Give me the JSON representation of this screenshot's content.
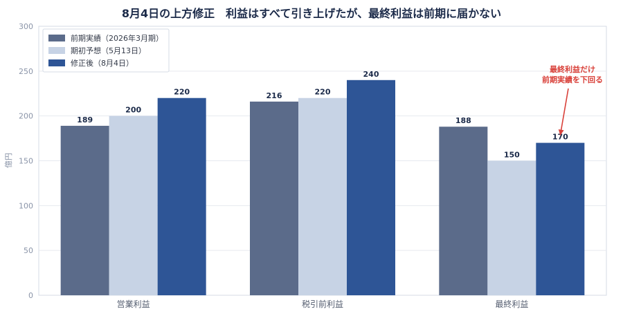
{
  "chart_data": {
    "type": "bar",
    "title": "8月4日の上方修正　利益はすべて引き上げたが、最終利益は前期に届かない",
    "ylabel": "億円",
    "xlabel": "",
    "ylim": [
      0,
      300
    ],
    "yticks": [
      0,
      50,
      100,
      150,
      200,
      250,
      300
    ],
    "grid": true,
    "legend_position": "top-left",
    "categories": [
      "営業利益",
      "税引前利益",
      "最終利益"
    ],
    "series": [
      {
        "name": "前期実績（2026年3月期）",
        "values": [
          189,
          216,
          188
        ],
        "color": "#5b6b8a"
      },
      {
        "name": "期初予想（5月13日）",
        "values": [
          200,
          220,
          150
        ],
        "color": "#c7d3e5"
      },
      {
        "name": "修正後（8月4日）",
        "values": [
          220,
          240,
          170
        ],
        "color": "#2e5596"
      }
    ],
    "annotation": {
      "lines": [
        "最終利益だけ",
        "前期実績を下回る"
      ],
      "category_index": 2,
      "series_index": 2,
      "color": "#d9413a"
    }
  }
}
